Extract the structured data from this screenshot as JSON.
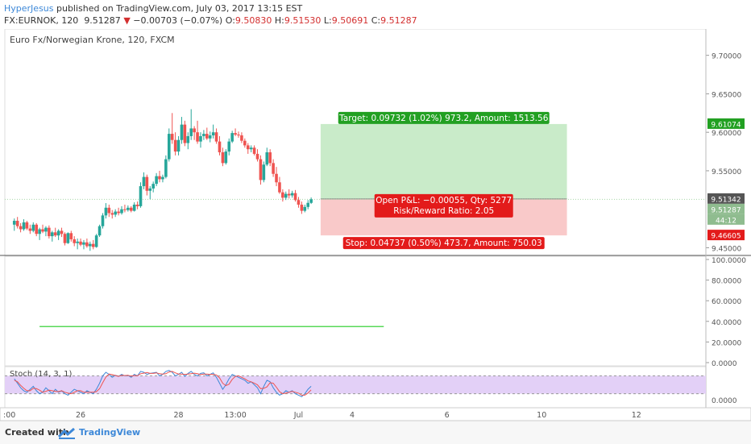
{
  "header": {
    "author": "HyperJesus",
    "published": " published on TradingView.com, July 03, 2017 13:15 EST",
    "symbol": "FX:EURNOK, 120",
    "last": "9.51287",
    "change": "−0.00703 (−0.07%)",
    "o_label": "O:",
    "o": "9.50830",
    "h_label": "H:",
    "h": "9.51530",
    "l_label": "L:",
    "l": "9.50691",
    "c_label": "C:",
    "c": "9.51287"
  },
  "footer": {
    "created_with": "Created with",
    "brand": "TradingView"
  },
  "colors": {
    "up": "#26a69a",
    "down": "#ef5350",
    "target_zone": "#c9ebc9",
    "stop_zone": "#f9c9c9",
    "target_label": "#22a022",
    "stop_label": "#e31b1b",
    "stoch_k": "#3d88d8",
    "stoch_d": "#ef5350",
    "stoch_band": "#e3d0f7",
    "indicator_line": "#22cc22"
  },
  "chart_data": [
    {
      "type": "candlestick",
      "title": "Euro Fx/Norwegian Krone, 120, FXCM",
      "ylim": [
        9.44,
        9.73
      ],
      "y_ticks": [
        "9.70000",
        "9.65000",
        "9.60000",
        "9.55000",
        "9.45000"
      ],
      "y_tick_values": [
        9.7,
        9.65,
        9.6,
        9.55,
        9.45
      ],
      "x_ticks": [
        "26",
        "28",
        "13:00",
        "Jul",
        "4",
        "6",
        "10",
        "12"
      ],
      "x_tick_positions_bar": [
        21,
        52,
        70,
        90,
        107,
        137,
        167,
        197
      ],
      "x_range_bars": [
        -3,
        219
      ],
      "candles": [
        [
          9.48,
          9.488,
          9.472,
          9.485
        ],
        [
          9.485,
          9.49,
          9.475,
          9.478
        ],
        [
          9.478,
          9.482,
          9.47,
          9.474
        ],
        [
          9.474,
          9.487,
          9.472,
          9.483
        ],
        [
          9.483,
          9.485,
          9.473,
          9.475
        ],
        [
          9.475,
          9.48,
          9.468,
          9.472
        ],
        [
          9.472,
          9.483,
          9.47,
          9.48
        ],
        [
          9.48,
          9.482,
          9.465,
          9.468
        ],
        [
          9.468,
          9.476,
          9.46,
          9.474
        ],
        [
          9.474,
          9.48,
          9.469,
          9.471
        ],
        [
          9.471,
          9.478,
          9.465,
          9.476
        ],
        [
          9.476,
          9.479,
          9.462,
          9.465
        ],
        [
          9.465,
          9.472,
          9.458,
          9.47
        ],
        [
          9.47,
          9.476,
          9.464,
          9.466
        ],
        [
          9.466,
          9.474,
          9.46,
          9.472
        ],
        [
          9.472,
          9.476,
          9.464,
          9.468
        ],
        [
          9.468,
          9.47,
          9.453,
          9.456
        ],
        [
          9.456,
          9.47,
          9.455,
          9.469
        ],
        [
          9.469,
          9.472,
          9.458,
          9.461
        ],
        [
          9.461,
          9.465,
          9.452,
          9.456
        ],
        [
          9.456,
          9.462,
          9.448,
          9.458
        ],
        [
          9.458,
          9.462,
          9.452,
          9.454
        ],
        [
          9.454,
          9.46,
          9.448,
          9.457
        ],
        [
          9.457,
          9.462,
          9.45,
          9.452
        ],
        [
          9.452,
          9.458,
          9.446,
          9.455
        ],
        [
          9.455,
          9.46,
          9.448,
          9.451
        ],
        [
          9.451,
          9.468,
          9.45,
          9.466
        ],
        [
          9.466,
          9.48,
          9.464,
          9.478
        ],
        [
          9.478,
          9.495,
          9.475,
          9.492
        ],
        [
          9.492,
          9.508,
          9.488,
          9.502
        ],
        [
          9.502,
          9.506,
          9.49,
          9.495
        ],
        [
          9.495,
          9.499,
          9.488,
          9.493
        ],
        [
          9.493,
          9.5,
          9.49,
          9.497
        ],
        [
          9.497,
          9.502,
          9.492,
          9.495
        ],
        [
          9.495,
          9.504,
          9.493,
          9.5
        ],
        [
          9.5,
          9.506,
          9.496,
          9.499
        ],
        [
          9.499,
          9.505,
          9.497,
          9.502
        ],
        [
          9.502,
          9.504,
          9.496,
          9.498
        ],
        [
          9.498,
          9.509,
          9.497,
          9.506
        ],
        [
          9.506,
          9.51,
          9.5,
          9.504
        ],
        [
          9.504,
          9.535,
          9.502,
          9.53
        ],
        [
          9.53,
          9.548,
          9.526,
          9.542
        ],
        [
          9.542,
          9.545,
          9.518,
          9.524
        ],
        [
          9.524,
          9.53,
          9.513,
          9.527
        ],
        [
          9.527,
          9.536,
          9.522,
          9.533
        ],
        [
          9.533,
          9.547,
          9.53,
          9.543
        ],
        [
          9.543,
          9.55,
          9.535,
          9.539
        ],
        [
          9.539,
          9.545,
          9.535,
          9.542
        ],
        [
          9.542,
          9.57,
          9.54,
          9.565
        ],
        [
          9.565,
          9.605,
          9.562,
          9.598
        ],
        [
          9.598,
          9.625,
          9.585,
          9.59
        ],
        [
          9.59,
          9.6,
          9.57,
          9.575
        ],
        [
          9.575,
          9.595,
          9.57,
          9.59
        ],
        [
          9.59,
          9.62,
          9.585,
          9.61
        ],
        [
          9.61,
          9.615,
          9.582,
          9.586
        ],
        [
          9.586,
          9.6,
          9.578,
          9.595
        ],
        [
          9.595,
          9.63,
          9.59,
          9.605
        ],
        [
          9.605,
          9.608,
          9.59,
          9.6
        ],
        [
          9.6,
          9.615,
          9.585,
          9.588
        ],
        [
          9.588,
          9.6,
          9.58,
          9.595
        ],
        [
          9.595,
          9.603,
          9.59,
          9.598
        ],
        [
          9.598,
          9.606,
          9.59,
          9.592
        ],
        [
          9.592,
          9.601,
          9.587,
          9.596
        ],
        [
          9.596,
          9.61,
          9.592,
          9.6
        ],
        [
          9.6,
          9.605,
          9.585,
          9.588
        ],
        [
          9.588,
          9.595,
          9.57,
          9.574
        ],
        [
          9.574,
          9.58,
          9.556,
          9.56
        ],
        [
          9.56,
          9.578,
          9.558,
          9.575
        ],
        [
          9.575,
          9.592,
          9.57,
          9.588
        ],
        [
          9.588,
          9.602,
          9.586,
          9.599
        ],
        [
          9.599,
          9.605,
          9.595,
          9.597
        ],
        [
          9.597,
          9.601,
          9.593,
          9.596
        ],
        [
          9.596,
          9.6,
          9.586,
          9.589
        ],
        [
          9.589,
          9.592,
          9.58,
          9.583
        ],
        [
          9.583,
          9.586,
          9.572,
          9.578
        ],
        [
          9.578,
          9.583,
          9.574,
          9.58
        ],
        [
          9.58,
          9.583,
          9.57,
          9.572
        ],
        [
          9.572,
          9.578,
          9.562,
          9.565
        ],
        [
          9.565,
          9.57,
          9.532,
          9.538
        ],
        [
          9.538,
          9.562,
          9.535,
          9.558
        ],
        [
          9.558,
          9.58,
          9.556,
          9.574
        ],
        [
          9.574,
          9.578,
          9.556,
          9.56
        ],
        [
          9.56,
          9.565,
          9.542,
          9.546
        ],
        [
          9.546,
          9.555,
          9.53,
          9.535
        ],
        [
          9.535,
          9.542,
          9.52,
          9.522
        ],
        [
          9.522,
          9.526,
          9.51,
          9.515
        ],
        [
          9.515,
          9.523,
          9.512,
          9.52
        ],
        [
          9.52,
          9.526,
          9.514,
          9.518
        ],
        [
          9.518,
          9.524,
          9.515,
          9.521
        ],
        [
          9.521,
          9.525,
          9.51,
          9.512
        ],
        [
          9.512,
          9.516,
          9.502,
          9.506
        ],
        [
          9.506,
          9.51,
          9.494,
          9.498
        ],
        [
          9.498,
          9.506,
          9.496,
          9.503
        ],
        [
          9.503,
          9.512,
          9.5,
          9.5083
        ],
        [
          9.5083,
          9.5153,
          9.5069,
          9.5129
        ]
      ],
      "trade_position": {
        "entry": 9.51342,
        "target": 9.61074,
        "stop": 9.46605,
        "start_bar": 97,
        "end_bar": 175,
        "target_label": "Target: 0.09732 (1.02%) 973.2, Amount: 1513.56",
        "stop_label": "Stop: 0.04737 (0.50%) 473.7, Amount: 750.03",
        "pnl_label": "Open P&L: −0.00055, Qty: 5277",
        "rr_label": "Risk/Reward Ratio: 2.05"
      },
      "price_badges": [
        {
          "label": "9.61074",
          "value": 9.61074,
          "color": "#22a022"
        },
        {
          "label": "9.51342",
          "value": 9.51342,
          "color": "#555555"
        },
        {
          "label": "9.51287",
          "value": 9.51287,
          "color": "#8fbc8f"
        },
        {
          "label": "44:12",
          "value": 9.5065,
          "color": "#8fbc8f"
        },
        {
          "label": "9.46605",
          "value": 9.46605,
          "color": "#e31b1b"
        }
      ]
    },
    {
      "type": "line",
      "ylim": [
        0,
        100
      ],
      "y_ticks": [
        "100.0000",
        "80.0000",
        "60.0000",
        "40.0000",
        "20.0000",
        "0.0000"
      ],
      "y_tick_values": [
        100,
        80,
        60,
        40,
        20,
        0
      ],
      "segment": {
        "from_bar": 8,
        "to_bar": 117,
        "value": 35
      }
    },
    {
      "type": "line",
      "title": "Stoch (14, 3, 1)",
      "ylim": [
        0,
        100
      ],
      "band": [
        20,
        80
      ],
      "y_ticks": [
        "0.0000"
      ],
      "y_tick_values": [
        0
      ],
      "series": [
        {
          "values": [
            70,
            55,
            40,
            30,
            25,
            35,
            45,
            30,
            20,
            25,
            40,
            30,
            20,
            35,
            25,
            30,
            20,
            15,
            25,
            35,
            30,
            25,
            20,
            30,
            25,
            20,
            35,
            55,
            80,
            92,
            85,
            75,
            82,
            78,
            85,
            80,
            82,
            75,
            85,
            80,
            95,
            92,
            85,
            88,
            90,
            92,
            80,
            85,
            95,
            98,
            92,
            80,
            85,
            92,
            78,
            88,
            95,
            85,
            80,
            88,
            90,
            80,
            85,
            90,
            75,
            55,
            35,
            50,
            70,
            85,
            80,
            75,
            70,
            65,
            55,
            60,
            50,
            40,
            20,
            45,
            65,
            60,
            40,
            25,
            15,
            20,
            30,
            25,
            30,
            20,
            15,
            10,
            20,
            35,
            45
          ]
        },
        {
          "values": [
            65,
            60,
            48,
            38,
            30,
            30,
            38,
            37,
            32,
            25,
            28,
            32,
            30,
            28,
            27,
            30,
            25,
            22,
            20,
            25,
            30,
            30,
            25,
            25,
            25,
            25,
            27,
            37,
            57,
            76,
            86,
            84,
            81,
            78,
            82,
            81,
            82,
            79,
            81,
            80,
            87,
            89,
            91,
            88,
            88,
            90,
            87,
            86,
            87,
            93,
            95,
            90,
            86,
            86,
            85,
            86,
            87,
            89,
            87,
            84,
            86,
            86,
            85,
            85,
            83,
            73,
            55,
            47,
            52,
            68,
            78,
            80,
            75,
            70,
            63,
            60,
            55,
            50,
            37,
            38,
            43,
            57,
            55,
            42,
            27,
            20,
            22,
            25,
            28,
            25,
            22,
            15,
            15,
            22,
            33
          ]
        }
      ]
    }
  ]
}
